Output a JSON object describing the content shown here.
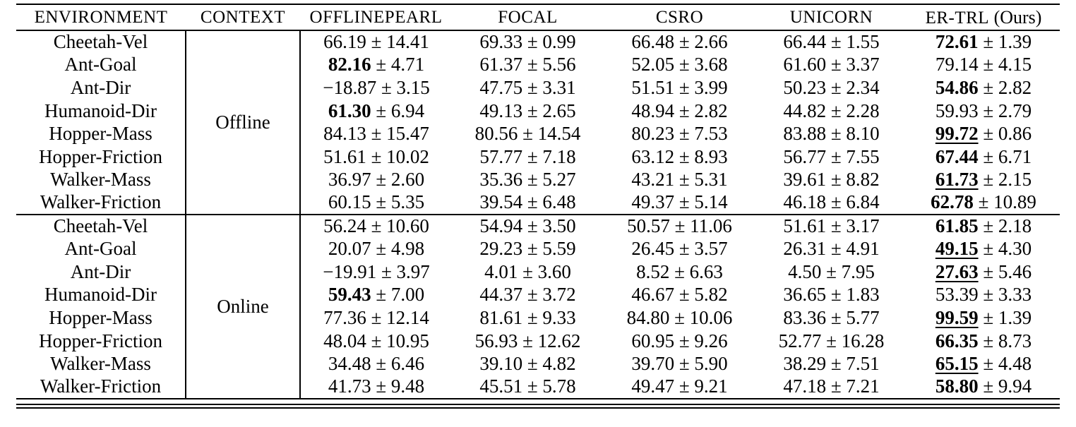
{
  "table": {
    "headers": [
      {
        "label": "ENVIRONMENT"
      },
      {
        "label": "CONTEXT"
      },
      {
        "label": "OFFLINEPEARL"
      },
      {
        "label": "FOCAL"
      },
      {
        "label": "CSRO"
      },
      {
        "label": "UNICORN"
      },
      {
        "label": "ER-TRL",
        "suffix": " (Ours)"
      }
    ],
    "plus_minus": "±",
    "sections": [
      {
        "context": "Offline",
        "rows": [
          {
            "env": "Cheetah-Vel",
            "cells": [
              {
                "mean": "66.19",
                "std": "14.41"
              },
              {
                "mean": "69.33",
                "std": "0.99"
              },
              {
                "mean": "66.48",
                "std": "2.66"
              },
              {
                "mean": "66.44",
                "std": "1.55"
              },
              {
                "mean": "72.61",
                "std": "1.39",
                "bold": true
              }
            ]
          },
          {
            "env": "Ant-Goal",
            "cells": [
              {
                "mean": "82.16",
                "std": "4.71",
                "bold": true
              },
              {
                "mean": "61.37",
                "std": "5.56"
              },
              {
                "mean": "52.05",
                "std": "3.68"
              },
              {
                "mean": "61.60",
                "std": "3.37"
              },
              {
                "mean": "79.14",
                "std": "4.15"
              }
            ]
          },
          {
            "env": "Ant-Dir",
            "cells": [
              {
                "mean": "−18.87",
                "std": "3.15"
              },
              {
                "mean": "47.75",
                "std": "3.31"
              },
              {
                "mean": "51.51",
                "std": "3.99"
              },
              {
                "mean": "50.23",
                "std": "2.34"
              },
              {
                "mean": "54.86",
                "std": "2.82",
                "bold": true
              }
            ]
          },
          {
            "env": "Humanoid-Dir",
            "cells": [
              {
                "mean": "61.30",
                "std": "6.94",
                "bold": true
              },
              {
                "mean": "49.13",
                "std": "2.65"
              },
              {
                "mean": "48.94",
                "std": "2.82"
              },
              {
                "mean": "44.82",
                "std": "2.28"
              },
              {
                "mean": "59.93",
                "std": "2.79"
              }
            ]
          },
          {
            "env": "Hopper-Mass",
            "cells": [
              {
                "mean": "84.13",
                "std": "15.47"
              },
              {
                "mean": "80.56",
                "std": "14.54"
              },
              {
                "mean": "80.23",
                "std": "7.53"
              },
              {
                "mean": "83.88",
                "std": "8.10"
              },
              {
                "mean": "99.72",
                "std": "0.86",
                "bold": true,
                "underline": true
              }
            ]
          },
          {
            "env": "Hopper-Friction",
            "cells": [
              {
                "mean": "51.61",
                "std": "10.02"
              },
              {
                "mean": "57.77",
                "std": "7.18"
              },
              {
                "mean": "63.12",
                "std": "8.93"
              },
              {
                "mean": "56.77",
                "std": "7.55"
              },
              {
                "mean": "67.44",
                "std": "6.71",
                "bold": true
              }
            ]
          },
          {
            "env": "Walker-Mass",
            "cells": [
              {
                "mean": "36.97",
                "std": "2.60"
              },
              {
                "mean": "35.36",
                "std": "5.27"
              },
              {
                "mean": "43.21",
                "std": "5.31"
              },
              {
                "mean": "39.61",
                "std": "8.82"
              },
              {
                "mean": "61.73",
                "std": "2.15",
                "bold": true,
                "underline": true
              }
            ]
          },
          {
            "env": "Walker-Friction",
            "cells": [
              {
                "mean": "60.15",
                "std": "5.35"
              },
              {
                "mean": "39.54",
                "std": "6.48"
              },
              {
                "mean": "49.37",
                "std": "5.14"
              },
              {
                "mean": "46.18",
                "std": "6.84"
              },
              {
                "mean": "62.78",
                "std": "10.89",
                "bold": true
              }
            ]
          }
        ]
      },
      {
        "context": "Online",
        "rows": [
          {
            "env": "Cheetah-Vel",
            "cells": [
              {
                "mean": "56.24",
                "std": "10.60"
              },
              {
                "mean": "54.94",
                "std": "3.50"
              },
              {
                "mean": "50.57",
                "std": "11.06"
              },
              {
                "mean": "51.61",
                "std": "3.17"
              },
              {
                "mean": "61.85",
                "std": "2.18",
                "bold": true
              }
            ]
          },
          {
            "env": "Ant-Goal",
            "cells": [
              {
                "mean": "20.07",
                "std": "4.98"
              },
              {
                "mean": "29.23",
                "std": "5.59"
              },
              {
                "mean": "26.45",
                "std": "3.57"
              },
              {
                "mean": "26.31",
                "std": "4.91"
              },
              {
                "mean": "49.15",
                "std": "4.30",
                "bold": true,
                "underline": true
              }
            ]
          },
          {
            "env": "Ant-Dir",
            "cells": [
              {
                "mean": "−19.91",
                "std": "3.97"
              },
              {
                "mean": "4.01",
                "std": "3.60"
              },
              {
                "mean": "8.52",
                "std": "6.63"
              },
              {
                "mean": "4.50",
                "std": "7.95"
              },
              {
                "mean": "27.63",
                "std": "5.46",
                "bold": true,
                "underline": true
              }
            ]
          },
          {
            "env": "Humanoid-Dir",
            "cells": [
              {
                "mean": "59.43",
                "std": "7.00",
                "bold": true
              },
              {
                "mean": "44.37",
                "std": "3.72"
              },
              {
                "mean": "46.67",
                "std": "5.82"
              },
              {
                "mean": "36.65",
                "std": "1.83"
              },
              {
                "mean": "53.39",
                "std": "3.33"
              }
            ]
          },
          {
            "env": "Hopper-Mass",
            "cells": [
              {
                "mean": "77.36",
                "std": "12.14"
              },
              {
                "mean": "81.61",
                "std": "9.33"
              },
              {
                "mean": "84.80",
                "std": "10.06"
              },
              {
                "mean": "83.36",
                "std": "5.77"
              },
              {
                "mean": "99.59",
                "std": "1.39",
                "bold": true,
                "underline": true
              }
            ]
          },
          {
            "env": "Hopper-Friction",
            "cells": [
              {
                "mean": "48.04",
                "std": "10.95"
              },
              {
                "mean": "56.93",
                "std": "12.62"
              },
              {
                "mean": "60.95",
                "std": "9.26"
              },
              {
                "mean": "52.77",
                "std": "16.28"
              },
              {
                "mean": "66.35",
                "std": "8.73",
                "bold": true
              }
            ]
          },
          {
            "env": "Walker-Mass",
            "cells": [
              {
                "mean": "34.48",
                "std": "6.46"
              },
              {
                "mean": "39.10",
                "std": "4.82"
              },
              {
                "mean": "39.70",
                "std": "5.90"
              },
              {
                "mean": "38.29",
                "std": "7.51"
              },
              {
                "mean": "65.15",
                "std": "4.48",
                "bold": true,
                "underline": true
              }
            ]
          },
          {
            "env": "Walker-Friction",
            "cells": [
              {
                "mean": "41.73",
                "std": "9.48"
              },
              {
                "mean": "45.51",
                "std": "5.78"
              },
              {
                "mean": "49.47",
                "std": "9.21"
              },
              {
                "mean": "47.18",
                "std": "7.21"
              },
              {
                "mean": "58.80",
                "std": "9.94",
                "bold": true
              }
            ]
          }
        ]
      }
    ]
  }
}
